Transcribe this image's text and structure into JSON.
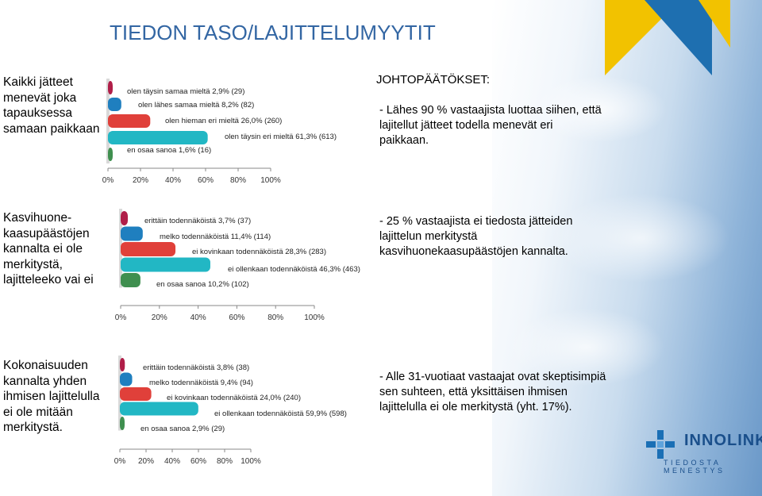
{
  "header": {
    "title": "TIEDON TASO/LAJITTELUMYYTIT"
  },
  "sections": [
    {
      "label": "Kaikki jätteet menevät joka tapauksessa samaan paikkaan",
      "conclusion_heading": "JOHTOPÄÄTÖKSET:",
      "conclusion": "- Lähes 90 % vastaajista luottaa siihen, että lajitellut jätteet todella menevät eri paikkaan."
    },
    {
      "label": "Kasvihuone-kaasupäästöjen kannalta ei ole merkitystä, lajitteleeko vai ei",
      "conclusion": "- 25 % vastaajista ei tiedosta jätteiden lajittelun merkitystä kasvihuonekaasupäästöjen kannalta."
    },
    {
      "label": "Kokonaisuuden kannalta yhden ihmisen lajittelulla ei ole mitään merkitystä.",
      "conclusion": "- Alle 31-vuotiaat vastaajat ovat skeptisimpiä sen suhteen, että yksittäisen ihmisen lajittelulla ei ole merkitystä (yht. 17%)."
    }
  ],
  "colors": {
    "maroon": "#b01e48",
    "blue": "#1f7fbf",
    "red": "#e0403a",
    "teal": "#22b7c4",
    "green": "#3f8f4f"
  },
  "chart_data": [
    {
      "type": "bar",
      "categories": [
        "olen täysin samaa mieltä",
        "olen lähes samaa mieltä",
        "olen hieman eri mieltä",
        "olen täysin eri mieltä",
        "en osaa sanoa"
      ],
      "labels": [
        "olen täysin samaa mieltä 2,9% (29)",
        "olen lähes samaa mieltä 8,2% (82)",
        "olen hieman eri mieltä 26,0% (260)",
        "olen täysin eri mieltä 61,3% (613)",
        "en osaa sanoa 1,6% (16)"
      ],
      "values": [
        2.9,
        8.2,
        26.0,
        61.3,
        1.6
      ],
      "xticks": [
        "0%",
        "20%",
        "40%",
        "60%",
        "80%",
        "100%"
      ],
      "xlim": [
        0,
        100
      ]
    },
    {
      "type": "bar",
      "categories": [
        "erittäin todennäköistä",
        "melko todennäköistä",
        "ei kovinkaan todennäköistä",
        "ei ollenkaan todennäköistä",
        "en osaa sanoa"
      ],
      "labels": [
        "erittäin todennäköistä 3,7% (37)",
        "melko todennäköistä 11,4% (114)",
        "ei kovinkaan todennäköistä 28,3% (283)",
        "ei ollenkaan todennäköistä 46,3% (463)",
        "en osaa sanoa 10,2% (102)"
      ],
      "values": [
        3.7,
        11.4,
        28.3,
        46.3,
        10.2
      ],
      "xticks": [
        "0%",
        "20%",
        "40%",
        "60%",
        "80%",
        "100%"
      ],
      "xlim": [
        0,
        100
      ]
    },
    {
      "type": "bar",
      "categories": [
        "erittäin todennäköistä",
        "melko todennäköistä",
        "ei kovinkaan todennäköistä",
        "ei ollenkaan todennäköistä",
        "en osaa sanoa"
      ],
      "labels": [
        "erittäin todennäköistä 3,8% (38)",
        "melko todennäköistä 9,4% (94)",
        "ei kovinkaan todennäköistä 24,0% (240)",
        "ei ollenkaan todennäköistä 59,9% (598)",
        "en osaa sanoa 2,9% (29)"
      ],
      "values": [
        3.8,
        9.4,
        24.0,
        59.9,
        2.9
      ],
      "xticks": [
        "0%",
        "20%",
        "40%",
        "60%",
        "80%",
        "100%"
      ],
      "xlim": [
        0,
        100
      ]
    }
  ],
  "logo": {
    "name": "INNOLINK",
    "tagline": "TIEDOSTA MENESTYS"
  }
}
